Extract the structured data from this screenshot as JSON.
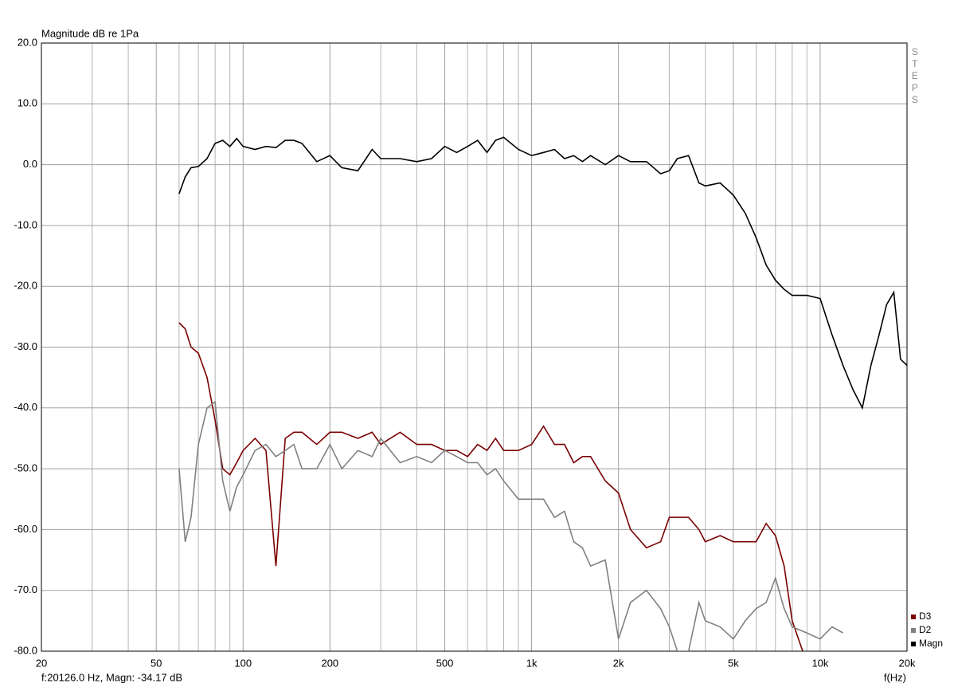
{
  "chart_data": {
    "type": "line",
    "title": "Magnitude dB re 1Pa",
    "side_label": "STEPS",
    "xlabel": "f(Hz)",
    "status": "f:20126.0 Hz, Magn: -34.17 dB",
    "xscale": "log",
    "grid": true,
    "legend": "lower right",
    "xlim": [
      20,
      20000
    ],
    "xticks": [
      20,
      50,
      100,
      200,
      500,
      {
        "value": 1000,
        "label": "1k"
      },
      {
        "value": 2000,
        "label": "2k"
      },
      {
        "value": 5000,
        "label": "5k"
      },
      {
        "value": 10000,
        "label": "10k"
      },
      {
        "value": 20000,
        "label": "20k"
      }
    ],
    "x_minor_grid": [
      30,
      40,
      60,
      70,
      80,
      90,
      300,
      400,
      600,
      700,
      800,
      900,
      3000,
      4000,
      6000,
      7000,
      8000,
      9000
    ],
    "ylim": [
      -80,
      20
    ],
    "yticks": [
      {
        "value": 20,
        "label": "20.0"
      },
      {
        "value": 10,
        "label": "10.0"
      },
      {
        "value": 0,
        "label": "0.0"
      },
      {
        "value": -10,
        "label": "-10.0"
      },
      {
        "value": -20,
        "label": "-20.0"
      },
      {
        "value": -30,
        "label": "-30.0"
      },
      {
        "value": -40,
        "label": "-40.0"
      },
      {
        "value": -50,
        "label": "-50.0"
      },
      {
        "value": -60,
        "label": "-60.0"
      },
      {
        "value": -70,
        "label": "-70.0"
      },
      {
        "value": -80,
        "label": "-80.0"
      }
    ],
    "x": [
      60,
      63,
      66,
      70,
      75,
      80,
      85,
      90,
      95,
      100,
      110,
      120,
      130,
      140,
      150,
      160,
      180,
      200,
      220,
      250,
      280,
      300,
      350,
      400,
      450,
      500,
      550,
      600,
      650,
      700,
      750,
      800,
      900,
      1000,
      1100,
      1200,
      1300,
      1400,
      1500,
      1600,
      1800,
      2000,
      2200,
      2500,
      2800,
      3000,
      3200,
      3500,
      3800,
      4000,
      4500,
      5000,
      5500,
      6000,
      6500,
      7000,
      7500,
      8000,
      9000,
      10000,
      11000,
      12000,
      13000,
      14000,
      15000,
      16000,
      17000,
      18000,
      19000,
      20000
    ],
    "series": [
      {
        "name": "D3",
        "color": "#7a0000",
        "values": [
          -26,
          -27,
          -30,
          -31,
          -35,
          -42,
          -50,
          -51,
          -49,
          -47,
          -45,
          -47,
          -66,
          -45,
          -44,
          -44,
          -46,
          -44,
          -44,
          -45,
          -44,
          -46,
          -44,
          -46,
          -46,
          -47,
          -47,
          -48,
          -46,
          -47,
          -45,
          -47,
          -47,
          -46,
          -43,
          -46,
          -46,
          -49,
          -48,
          -48,
          -52,
          -54,
          -60,
          -63,
          -62,
          -58,
          -58,
          -58,
          -60,
          -62,
          -61,
          -62,
          -62,
          -62,
          -59,
          -61,
          -66,
          -75,
          -82,
          null,
          null,
          null,
          null,
          null,
          null,
          null,
          null,
          null,
          null,
          null
        ]
      },
      {
        "name": "D2",
        "color": "#808080",
        "values": [
          -50,
          -62,
          -58,
          -46,
          -40,
          -39,
          -52,
          -57,
          -53,
          -51,
          -47,
          -46,
          -48,
          -47,
          -46,
          -50,
          -50,
          -46,
          -50,
          -47,
          -48,
          -45,
          -49,
          -48,
          -49,
          -47,
          -48,
          -49,
          -49,
          -51,
          -50,
          -52,
          -55,
          -55,
          -55,
          -58,
          -57,
          -62,
          -63,
          -66,
          -65,
          -78,
          -72,
          -70,
          -73,
          -76,
          -80,
          -80,
          -72,
          -75,
          -76,
          -78,
          -75,
          -73,
          -72,
          -68,
          -73,
          -76,
          -77,
          -78,
          -76,
          -77,
          null,
          null,
          null,
          null,
          null,
          null,
          null,
          null
        ]
      },
      {
        "name": "Magn",
        "color": "#000000",
        "values": [
          -4.8,
          -2,
          -0.5,
          -0.3,
          1,
          3.5,
          4,
          3,
          4.3,
          3,
          2.5,
          3,
          2.8,
          4,
          4,
          3.5,
          0.5,
          1.5,
          -0.5,
          -1,
          2.5,
          1,
          1,
          0.5,
          1,
          3,
          2,
          3,
          4,
          2,
          4,
          4.5,
          2.5,
          1.5,
          2,
          2.5,
          1,
          1.5,
          0.5,
          1.5,
          0,
          1.5,
          0.5,
          0.5,
          -1.5,
          -1,
          1,
          1.5,
          -3,
          -3.5,
          -3,
          -5,
          -8,
          -12,
          -16.5,
          -19,
          -20.5,
          -21.5,
          -21.5,
          -22,
          -28,
          -33,
          -37,
          -40,
          -33,
          -28,
          -23,
          -21,
          -32,
          -33
        ]
      }
    ]
  }
}
